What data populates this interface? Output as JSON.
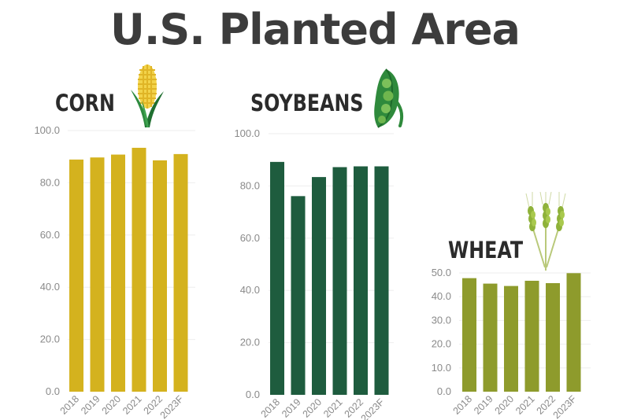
{
  "title": "U.S. Planted Area",
  "colors": {
    "corn": "#d4b21e",
    "soybeans": "#1e5c3e",
    "wheat": "#8e9b2c",
    "title": "#3c3c3c"
  },
  "icons": {
    "corn": "corn-cob-icon",
    "soybeans": "soybean-pod-icon",
    "wheat": "wheat-stalk-icon"
  },
  "chart_data": [
    {
      "type": "bar",
      "label": "CORN",
      "categories": [
        "2018",
        "2019",
        "2020",
        "2021",
        "2022",
        "2023F"
      ],
      "values": [
        88.9,
        89.7,
        90.8,
        93.4,
        88.6,
        91.0
      ],
      "ylim": [
        0,
        100
      ],
      "yticks": [
        "0.0",
        "20.0",
        "40.0",
        "60.0",
        "80.0",
        "100.0"
      ],
      "grid": true
    },
    {
      "type": "bar",
      "label": "SOYBEANS",
      "categories": [
        "2018",
        "2019",
        "2020",
        "2021",
        "2022",
        "2023F"
      ],
      "values": [
        89.2,
        76.1,
        83.4,
        87.2,
        87.5,
        87.5
      ],
      "ylim": [
        0,
        100
      ],
      "yticks": [
        "0.0",
        "20.0",
        "40.0",
        "60.0",
        "80.0",
        "100.0"
      ],
      "grid": true
    },
    {
      "type": "bar",
      "label": "WHEAT",
      "categories": [
        "2018",
        "2019",
        "2020",
        "2021",
        "2022",
        "2023F"
      ],
      "values": [
        47.8,
        45.5,
        44.5,
        46.7,
        45.7,
        49.9
      ],
      "ylim": [
        0,
        50
      ],
      "yticks": [
        "0.0",
        "10.0",
        "20.0",
        "30.0",
        "40.0",
        "50.0"
      ],
      "grid": true
    }
  ]
}
